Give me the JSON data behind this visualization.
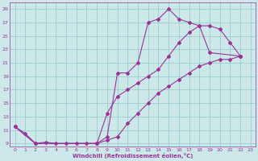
{
  "xlabel": "Windchill (Refroidissement éolien,°C)",
  "background_color": "#cce8e8",
  "grid_color": "#99cccc",
  "line_color": "#993399",
  "xlim": [
    -0.5,
    23.5
  ],
  "ylim": [
    8.5,
    30
  ],
  "yticks": [
    9,
    11,
    13,
    15,
    17,
    19,
    21,
    23,
    25,
    27,
    29
  ],
  "xticks": [
    0,
    1,
    2,
    3,
    4,
    5,
    6,
    7,
    8,
    9,
    10,
    11,
    12,
    13,
    14,
    15,
    16,
    17,
    18,
    19,
    20,
    21,
    22,
    23
  ],
  "series1": [
    [
      0,
      11.5
    ],
    [
      1,
      10.5
    ],
    [
      2,
      9.0
    ],
    [
      3,
      9.2
    ],
    [
      4,
      9.0
    ],
    [
      5,
      9.0
    ],
    [
      6,
      9.0
    ],
    [
      7,
      9.0
    ],
    [
      8,
      9.0
    ],
    [
      9,
      10.0
    ],
    [
      10,
      19.5
    ],
    [
      11,
      19.5
    ],
    [
      12,
      21.0
    ],
    [
      13,
      27.0
    ],
    [
      14,
      27.5
    ],
    [
      15,
      29.0
    ],
    [
      16,
      27.5
    ],
    [
      17,
      27.0
    ],
    [
      18,
      26.5
    ],
    [
      19,
      22.5
    ],
    [
      22,
      22.0
    ]
  ],
  "series2": [
    [
      0,
      11.5
    ],
    [
      2,
      9.0
    ],
    [
      8,
      9.0
    ],
    [
      9,
      13.5
    ],
    [
      10,
      16.0
    ],
    [
      11,
      17.0
    ],
    [
      12,
      18.0
    ],
    [
      13,
      19.0
    ],
    [
      14,
      20.0
    ],
    [
      15,
      22.0
    ],
    [
      16,
      24.0
    ],
    [
      17,
      25.5
    ],
    [
      18,
      26.5
    ],
    [
      19,
      26.5
    ],
    [
      20,
      26.0
    ],
    [
      21,
      24.0
    ],
    [
      22,
      22.0
    ]
  ],
  "series3": [
    [
      0,
      11.5
    ],
    [
      2,
      9.0
    ],
    [
      8,
      9.0
    ],
    [
      9,
      9.5
    ],
    [
      10,
      10.0
    ],
    [
      11,
      12.0
    ],
    [
      12,
      13.5
    ],
    [
      13,
      15.0
    ],
    [
      14,
      16.5
    ],
    [
      15,
      17.5
    ],
    [
      16,
      18.5
    ],
    [
      17,
      19.5
    ],
    [
      18,
      20.5
    ],
    [
      19,
      21.0
    ],
    [
      20,
      21.5
    ],
    [
      21,
      21.5
    ],
    [
      22,
      22.0
    ]
  ]
}
